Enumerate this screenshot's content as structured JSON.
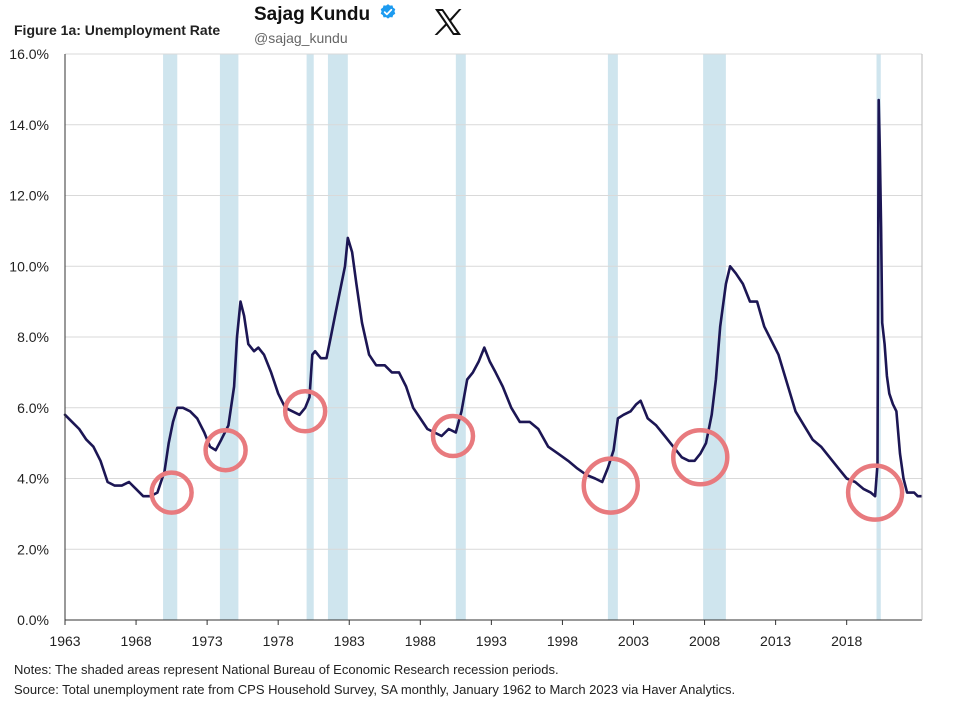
{
  "header": {
    "figure_title": "Figure 1a: Unemployment Rate",
    "author_name": "Sajag Kundu",
    "author_handle": "@sajag_kundu",
    "verified_icon": "verified-badge-icon",
    "platform_icon": "x-logo-icon"
  },
  "colors": {
    "line": "#1c1654",
    "recession": "#cfe5ee",
    "highlight_circle": "#e87a7e",
    "grid": "#d9d9d9",
    "axis": "#333333"
  },
  "chart_data": {
    "type": "line",
    "title": "Figure 1a: Unemployment Rate",
    "xlabel": "",
    "ylabel": "",
    "xlim": [
      1963,
      2023.3
    ],
    "ylim": [
      0,
      16
    ],
    "y_ticks": [
      0,
      2,
      4,
      6,
      8,
      10,
      12,
      14,
      16
    ],
    "y_tick_labels": [
      "0.0%",
      "2.0%",
      "4.0%",
      "6.0%",
      "8.0%",
      "10.0%",
      "12.0%",
      "14.0%",
      "16.0%"
    ],
    "x_ticks": [
      1963,
      1968,
      1973,
      1978,
      1983,
      1988,
      1993,
      1998,
      2003,
      2008,
      2013,
      2018
    ],
    "x_tick_labels": [
      "1963",
      "1968",
      "1973",
      "1978",
      "1983",
      "1988",
      "1993",
      "1998",
      "2003",
      "2008",
      "2013",
      "2018"
    ],
    "grid": "horizontal",
    "series": [
      {
        "name": "Unemployment Rate",
        "x": [
          1963.0,
          1963.5,
          1964.0,
          1964.5,
          1965.0,
          1965.5,
          1966.0,
          1966.5,
          1967.0,
          1967.5,
          1968.0,
          1968.5,
          1969.0,
          1969.5,
          1970.0,
          1970.3,
          1970.6,
          1970.9,
          1971.3,
          1971.8,
          1972.3,
          1972.8,
          1973.2,
          1973.6,
          1974.0,
          1974.5,
          1974.9,
          1975.1,
          1975.35,
          1975.6,
          1975.9,
          1976.3,
          1976.6,
          1977.0,
          1977.5,
          1978.0,
          1978.5,
          1979.0,
          1979.5,
          1979.9,
          1980.2,
          1980.4,
          1980.6,
          1981.0,
          1981.4,
          1981.7,
          1982.0,
          1982.4,
          1982.7,
          1982.9,
          1983.2,
          1983.5,
          1983.9,
          1984.4,
          1984.9,
          1985.5,
          1986.0,
          1986.5,
          1987.0,
          1987.5,
          1988.0,
          1988.5,
          1989.0,
          1989.5,
          1990.0,
          1990.5,
          1990.9,
          1991.3,
          1991.7,
          1992.1,
          1992.5,
          1992.9,
          1993.3,
          1993.8,
          1994.4,
          1995.0,
          1995.7,
          1996.3,
          1997.0,
          1997.7,
          1998.4,
          1999.0,
          1999.7,
          2000.3,
          2000.8,
          2001.2,
          2001.6,
          2001.9,
          2002.3,
          2002.8,
          2003.2,
          2003.5,
          2004.0,
          2004.6,
          2005.2,
          2005.8,
          2006.4,
          2006.9,
          2007.3,
          2007.7,
          2008.1,
          2008.5,
          2008.8,
          2009.1,
          2009.5,
          2009.8,
          2010.2,
          2010.7,
          2011.2,
          2011.7,
          2012.2,
          2012.7,
          2013.2,
          2013.8,
          2014.4,
          2015.0,
          2015.6,
          2016.2,
          2016.8,
          2017.4,
          2018.0,
          2018.6,
          2019.2,
          2019.7,
          2020.0,
          2020.17,
          2020.25,
          2020.33,
          2020.42,
          2020.5,
          2020.67,
          2020.83,
          2021.0,
          2021.25,
          2021.5,
          2021.75,
          2022.0,
          2022.25,
          2022.5,
          2022.75,
          2023.0,
          2023.25
        ],
        "values": [
          5.8,
          5.6,
          5.4,
          5.1,
          4.9,
          4.5,
          3.9,
          3.8,
          3.8,
          3.9,
          3.7,
          3.5,
          3.5,
          3.6,
          4.2,
          5.0,
          5.6,
          6.0,
          6.0,
          5.9,
          5.7,
          5.3,
          4.9,
          4.8,
          5.1,
          5.5,
          6.6,
          8.0,
          9.0,
          8.6,
          7.8,
          7.6,
          7.7,
          7.5,
          7.0,
          6.4,
          6.0,
          5.9,
          5.8,
          6.0,
          6.3,
          7.5,
          7.6,
          7.4,
          7.4,
          8.0,
          8.6,
          9.4,
          10.0,
          10.8,
          10.4,
          9.5,
          8.4,
          7.5,
          7.2,
          7.2,
          7.0,
          7.0,
          6.6,
          6.0,
          5.7,
          5.4,
          5.3,
          5.2,
          5.4,
          5.3,
          5.9,
          6.8,
          7.0,
          7.3,
          7.7,
          7.3,
          7.0,
          6.6,
          6.0,
          5.6,
          5.6,
          5.4,
          4.9,
          4.7,
          4.5,
          4.3,
          4.1,
          4.0,
          3.9,
          4.3,
          4.8,
          5.7,
          5.8,
          5.9,
          6.1,
          6.2,
          5.7,
          5.5,
          5.2,
          4.9,
          4.6,
          4.5,
          4.5,
          4.7,
          5.0,
          5.8,
          6.8,
          8.3,
          9.5,
          10.0,
          9.8,
          9.5,
          9.0,
          9.0,
          8.3,
          7.9,
          7.5,
          6.7,
          5.9,
          5.5,
          5.1,
          4.9,
          4.6,
          4.3,
          4.0,
          3.9,
          3.7,
          3.6,
          3.5,
          4.4,
          14.7,
          13.3,
          11.1,
          8.4,
          7.8,
          6.9,
          6.4,
          6.1,
          5.9,
          4.7,
          4.0,
          3.6,
          3.6,
          3.6,
          3.5,
          3.5
        ]
      }
    ],
    "recessions": [
      [
        1969.9,
        1970.9
      ],
      [
        1973.9,
        1975.2
      ],
      [
        1980.0,
        1980.5
      ],
      [
        1981.5,
        1982.9
      ],
      [
        1990.5,
        1991.2
      ],
      [
        2001.2,
        2001.9
      ],
      [
        2007.9,
        2009.5
      ],
      [
        2020.1,
        2020.4
      ]
    ],
    "highlight_circles": [
      {
        "x": 1970.5,
        "y": 3.6
      },
      {
        "x": 1974.3,
        "y": 4.8
      },
      {
        "x": 1979.9,
        "y": 5.9
      },
      {
        "x": 1990.3,
        "y": 5.2
      },
      {
        "x": 2001.4,
        "y": 3.8
      },
      {
        "x": 2007.7,
        "y": 4.6
      },
      {
        "x": 2020.0,
        "y": 3.6
      }
    ]
  },
  "notes": {
    "line1": "Notes: The shaded areas represent National Bureau of Economic Research recession periods.",
    "line2": "Source: Total unemployment rate from CPS Household Survey, SA monthly, January 1962 to March 2023 via Haver Analytics."
  }
}
